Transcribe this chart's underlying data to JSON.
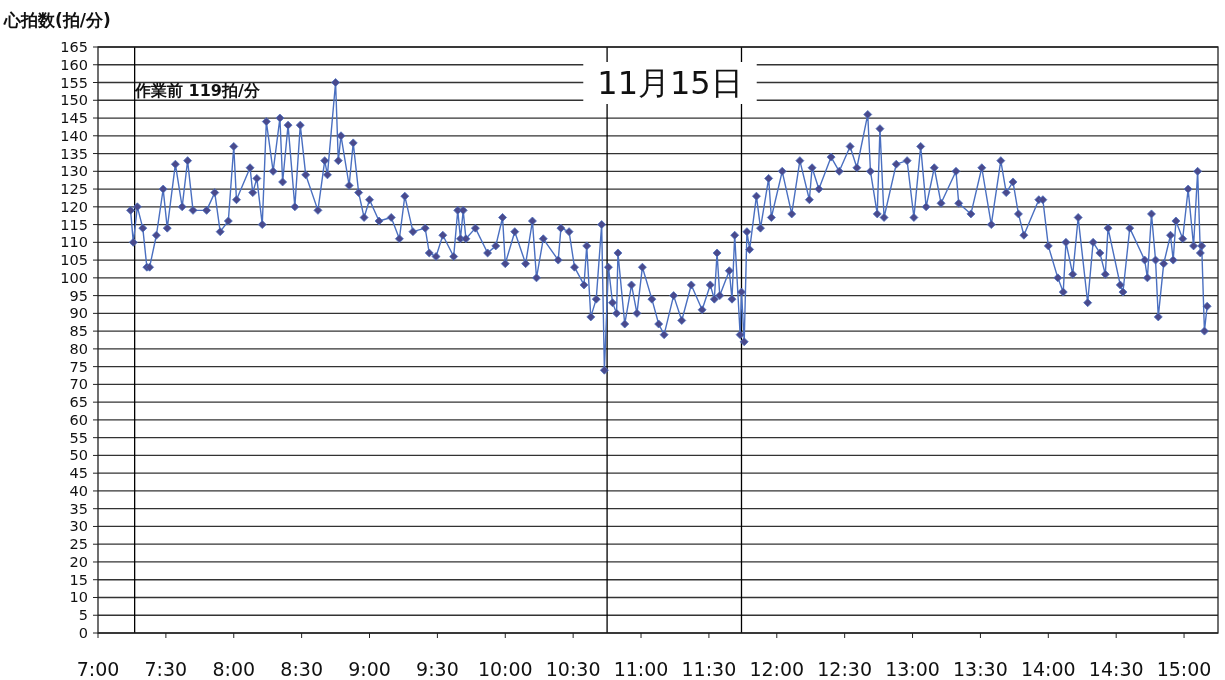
{
  "chart_data": {
    "type": "line",
    "title": "11月15日",
    "ylabel": "心拍数(拍/分)",
    "annotations": [
      "作業前 119拍/分"
    ],
    "xlim": [
      7,
      15.25
    ],
    "ylim": [
      0,
      165
    ],
    "xticks": [
      {
        "value": 7,
        "label": "7:00"
      },
      {
        "value": 7.5,
        "label": "7:30"
      },
      {
        "value": 8,
        "label": "8:00"
      },
      {
        "value": 8.5,
        "label": "8:30"
      },
      {
        "value": 9,
        "label": "9:00"
      },
      {
        "value": 9.5,
        "label": "9:30"
      },
      {
        "value": 10,
        "label": "10:00"
      },
      {
        "value": 10.5,
        "label": "10:30"
      },
      {
        "value": 11,
        "label": "11:00"
      },
      {
        "value": 11.5,
        "label": "11:30"
      },
      {
        "value": 12,
        "label": "12:00"
      },
      {
        "value": 12.5,
        "label": "12:30"
      },
      {
        "value": 13,
        "label": "13:00"
      },
      {
        "value": 13.5,
        "label": "13:30"
      },
      {
        "value": 14,
        "label": "14:00"
      },
      {
        "value": 14.5,
        "label": "14:30"
      },
      {
        "value": 15,
        "label": "15:00"
      }
    ],
    "yticks": [
      0,
      5,
      10,
      15,
      20,
      25,
      30,
      35,
      40,
      45,
      50,
      55,
      60,
      65,
      70,
      75,
      80,
      85,
      90,
      95,
      100,
      105,
      110,
      115,
      120,
      125,
      130,
      135,
      140,
      145,
      150,
      155,
      160,
      165
    ],
    "grid": "y",
    "marker": "diamond",
    "line_style": "solid",
    "ref_lines": [
      {
        "axis": "x",
        "value": 7.27,
        "color": "#000000"
      },
      {
        "axis": "x",
        "value": 10.75,
        "color": "#000000"
      },
      {
        "axis": "x",
        "value": 11.74,
        "color": "#000000"
      }
    ],
    "series": [
      {
        "color": "#4a6fc0",
        "x": [
          7.24,
          7.26,
          7.29,
          7.33,
          7.36,
          7.38,
          7.43,
          7.48,
          7.51,
          7.57,
          7.62,
          7.66,
          7.7,
          7.8,
          7.86,
          7.9,
          7.96,
          8.0,
          8.02,
          8.12,
          8.14,
          8.17,
          8.21,
          8.24,
          8.29,
          8.34,
          8.36,
          8.4,
          8.45,
          8.49,
          8.53,
          8.62,
          8.67,
          8.69,
          8.75,
          8.77,
          8.79,
          8.85,
          8.88,
          8.92,
          8.96,
          9.0,
          9.07,
          9.16,
          9.22,
          9.26,
          9.32,
          9.41,
          9.44,
          9.49,
          9.54,
          9.62,
          9.65,
          9.67,
          9.69,
          9.71,
          9.78,
          9.87,
          9.93,
          9.98,
          10.0,
          10.07,
          10.15,
          10.2,
          10.23,
          10.28,
          10.39,
          10.41,
          10.47,
          10.51,
          10.58,
          10.6,
          10.63,
          10.67,
          10.71,
          10.73,
          10.76,
          10.79,
          10.82,
          10.83,
          10.88,
          10.93,
          10.97,
          11.01,
          11.08,
          11.13,
          11.17,
          11.24,
          11.3,
          11.37,
          11.45,
          11.51,
          11.54,
          11.56,
          11.58,
          11.65,
          11.67,
          11.69,
          11.73,
          11.74,
          11.76,
          11.78,
          11.8,
          11.85,
          11.88,
          11.94,
          11.96,
          12.04,
          12.11,
          12.17,
          12.24,
          12.26,
          12.31,
          12.4,
          12.46,
          12.54,
          12.59,
          12.67,
          12.69,
          12.74,
          12.76,
          12.79,
          12.88,
          12.96,
          13.01,
          13.06,
          13.1,
          13.16,
          13.21,
          13.32,
          13.34,
          13.43,
          13.51,
          13.58,
          13.65,
          13.69,
          13.74,
          13.78,
          13.82,
          13.93,
          13.96,
          14.0,
          14.07,
          14.11,
          14.13,
          14.18,
          14.22,
          14.29,
          14.33,
          14.38,
          14.42,
          14.44,
          14.53,
          14.55,
          14.6,
          14.71,
          14.73,
          14.76,
          14.79,
          14.81,
          14.85,
          14.9,
          14.92,
          14.94,
          14.99,
          15.03,
          15.07,
          15.1,
          15.12,
          15.13,
          15.15,
          15.17
        ],
        "values": [
          119,
          110,
          120,
          114,
          103,
          103,
          112,
          125,
          114,
          132,
          120,
          133,
          119,
          119,
          124,
          113,
          116,
          137,
          122,
          131,
          124,
          128,
          115,
          144,
          130,
          145,
          127,
          143,
          120,
          143,
          129,
          119,
          133,
          129,
          155,
          133,
          140,
          126,
          138,
          124,
          117,
          122,
          116,
          117,
          111,
          123,
          113,
          114,
          107,
          106,
          112,
          106,
          119,
          111,
          119,
          111,
          114,
          107,
          109,
          117,
          104,
          113,
          104,
          116,
          100,
          111,
          105,
          114,
          113,
          103,
          98,
          109,
          89,
          94,
          115,
          74,
          103,
          93,
          90,
          107,
          87,
          98,
          90,
          103,
          94,
          87,
          84,
          95,
          88,
          98,
          91,
          98,
          94,
          107,
          95,
          102,
          94,
          112,
          84,
          96,
          82,
          113,
          108,
          123,
          114,
          128,
          117,
          130,
          118,
          133,
          122,
          131,
          125,
          134,
          130,
          137,
          131,
          146,
          130,
          118,
          142,
          117,
          132,
          133,
          117,
          137,
          120,
          131,
          121,
          130,
          121,
          118,
          131,
          115,
          133,
          124,
          127,
          118,
          112,
          122,
          122,
          109,
          100,
          96,
          110,
          101,
          117,
          93,
          110,
          107,
          101,
          114,
          98,
          96,
          114,
          105,
          100,
          118,
          105,
          89,
          104,
          112,
          105,
          116,
          111,
          125,
          109,
          130,
          107,
          109,
          85,
          92
        ]
      }
    ]
  }
}
